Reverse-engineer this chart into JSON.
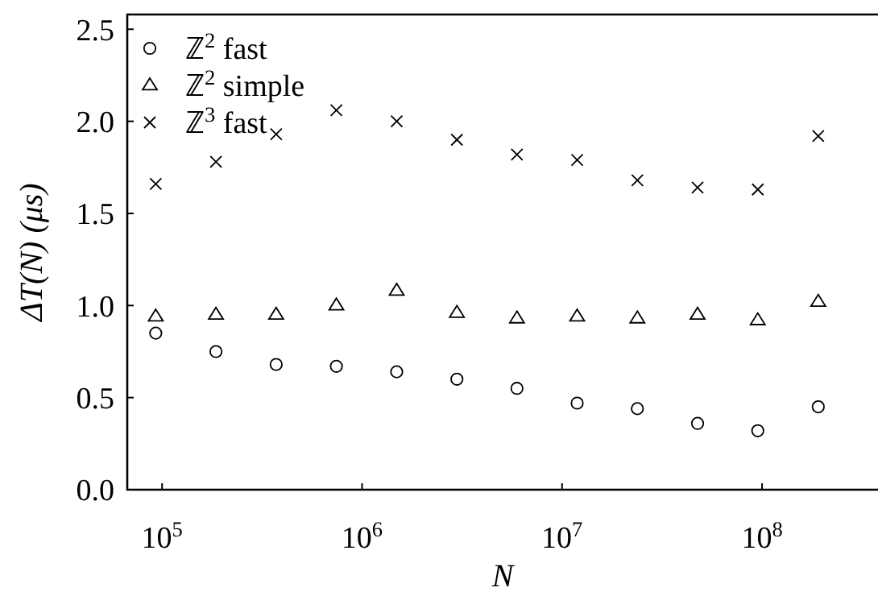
{
  "chart_data": {
    "type": "scatter",
    "xlabel": "N",
    "ylabel": "ΔT(N) (μs)",
    "log": "x",
    "x": [
      93000,
      186000,
      372000,
      744000,
      1490000,
      2980000,
      5950000,
      11900000,
      23800000,
      47600000,
      95200000,
      191000000
    ],
    "xlim": [
      67000,
      380000000
    ],
    "xticks": [
      {
        "value": 100000,
        "label": "10$^{5}$"
      },
      {
        "value": 1000000,
        "label": "10$^{6}$"
      },
      {
        "value": 10000000,
        "label": "10$^{7}$"
      },
      {
        "value": 100000000,
        "label": "10$^{8}$"
      }
    ],
    "ylim": [
      0,
      2.58
    ],
    "yticks": [
      {
        "value": 0,
        "label": "0.0"
      },
      {
        "value": 0.5,
        "label": "0.5"
      },
      {
        "value": 1,
        "label": "1.0"
      },
      {
        "value": 1.5,
        "label": "1.5"
      },
      {
        "value": 2,
        "label": "2.0"
      },
      {
        "value": 2.5,
        "label": "2.5"
      }
    ],
    "legend": "top left",
    "grid": false,
    "series": [
      {
        "name": "ℤ$^{2}$ fast",
        "color": "#000000",
        "marker": "circle",
        "values": [
          0.85,
          0.75,
          0.68,
          0.67,
          0.64,
          0.6,
          0.55,
          0.47,
          0.44,
          0.36,
          0.32,
          0.45
        ]
      },
      {
        "name": "ℤ$^{2}$ simple",
        "color": "#000000",
        "marker": "triangle",
        "values": [
          0.94,
          0.95,
          0.95,
          1.0,
          1.08,
          0.96,
          0.93,
          0.94,
          0.93,
          0.95,
          0.92,
          1.02
        ]
      },
      {
        "name": "ℤ$^{3}$ fast",
        "color": "#000000",
        "marker": "cross",
        "values": [
          1.66,
          1.78,
          1.93,
          2.06,
          2.0,
          1.9,
          1.82,
          1.79,
          1.68,
          1.64,
          1.63,
          1.92
        ]
      }
    ]
  }
}
